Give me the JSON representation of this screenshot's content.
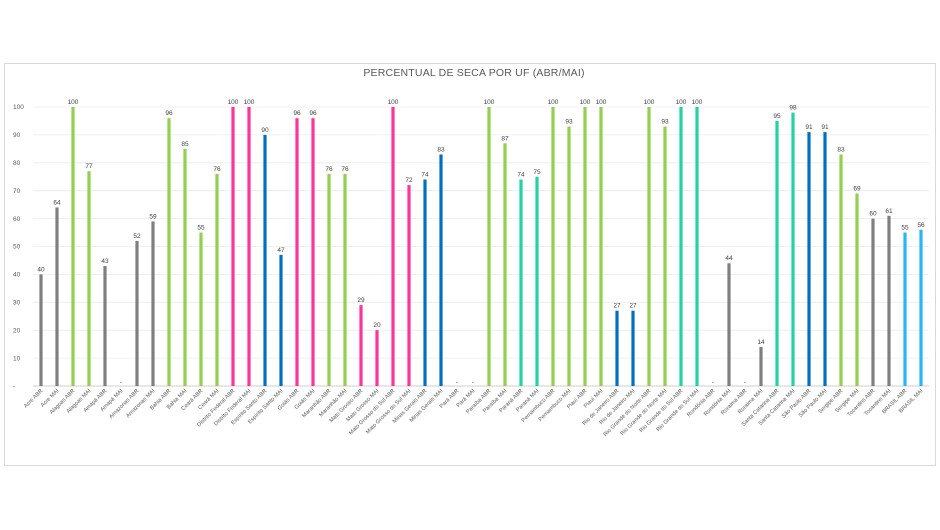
{
  "chart_data": {
    "type": "bar",
    "title": "PERCENTUAL DE SECA POR UF (ABR/MAI)",
    "xlabel": "",
    "ylabel": "",
    "ylim": [
      0,
      100
    ],
    "yticks": [
      "-",
      "10",
      "20",
      "30",
      "40",
      "50",
      "60",
      "70",
      "80",
      "90",
      "100"
    ],
    "grid": true,
    "legend": "none",
    "colors": {
      "gray": "#7f7f7f",
      "green": "#92d050",
      "pink": "#ff3399",
      "blue": "#0070c0",
      "teal": "#21d3a5",
      "lightblue": "#29b6f6"
    },
    "points": [
      {
        "category": "Acre ABR",
        "value": 40,
        "label": "40",
        "color": "gray"
      },
      {
        "category": "Acre MAI",
        "value": 64,
        "label": "64",
        "color": "gray"
      },
      {
        "category": "Alagoas ABR",
        "value": 100,
        "label": "100",
        "color": "green"
      },
      {
        "category": "Alagoas MAI",
        "value": 77,
        "label": "77",
        "color": "green"
      },
      {
        "category": "Amapá ABR",
        "value": 43,
        "label": "43",
        "color": "gray"
      },
      {
        "category": "Amapá MAI",
        "value": 0,
        "label": "-",
        "color": "gray"
      },
      {
        "category": "Amazonas ABR",
        "value": 52,
        "label": "52",
        "color": "gray"
      },
      {
        "category": "Amazonas MAI",
        "value": 59,
        "label": "59",
        "color": "gray"
      },
      {
        "category": "Bahia ABR",
        "value": 96,
        "label": "96",
        "color": "green"
      },
      {
        "category": "Bahia MAI",
        "value": 85,
        "label": "85",
        "color": "green"
      },
      {
        "category": "Ceará ABR",
        "value": 55,
        "label": "55",
        "color": "green"
      },
      {
        "category": "Ceará MAI",
        "value": 76,
        "label": "76",
        "color": "green"
      },
      {
        "category": "Distrito Federal ABR",
        "value": 100,
        "label": "100",
        "color": "pink"
      },
      {
        "category": "Distrito Federal MAI",
        "value": 100,
        "label": "100",
        "color": "pink"
      },
      {
        "category": "Espírito Santo ABR",
        "value": 90,
        "label": "90",
        "color": "blue"
      },
      {
        "category": "Espírito Santo MAI",
        "value": 47,
        "label": "47",
        "color": "blue"
      },
      {
        "category": "Goiás ABR",
        "value": 96,
        "label": "96",
        "color": "pink"
      },
      {
        "category": "Goiás MAI",
        "value": 96,
        "label": "96",
        "color": "pink"
      },
      {
        "category": "Maranhão ABR",
        "value": 76,
        "label": "76",
        "color": "green"
      },
      {
        "category": "Maranhão MAI",
        "value": 76,
        "label": "76",
        "color": "green"
      },
      {
        "category": "Mato Grosso ABR",
        "value": 29,
        "label": "29",
        "color": "pink"
      },
      {
        "category": "Mato Grosso MAI",
        "value": 20,
        "label": "20",
        "color": "pink"
      },
      {
        "category": "Mato Grosso do Sul ABR",
        "value": 100,
        "label": "100",
        "color": "pink"
      },
      {
        "category": "Mato Grosso do Sul MAI",
        "value": 72,
        "label": "72",
        "color": "pink"
      },
      {
        "category": "Minas Gerais ABR",
        "value": 74,
        "label": "74",
        "color": "blue"
      },
      {
        "category": "Minas Gerais MAI",
        "value": 83,
        "label": "83",
        "color": "blue"
      },
      {
        "category": "Pará ABR",
        "value": 0,
        "label": "-",
        "color": "gray"
      },
      {
        "category": "Pará MAI",
        "value": 0,
        "label": "-",
        "color": "gray"
      },
      {
        "category": "Paraíba ABR",
        "value": 100,
        "label": "100",
        "color": "green"
      },
      {
        "category": "Paraíba MAI",
        "value": 87,
        "label": "87",
        "color": "green"
      },
      {
        "category": "Paraná ABR",
        "value": 74,
        "label": "74",
        "color": "teal"
      },
      {
        "category": "Paraná MAI",
        "value": 75,
        "label": "75",
        "color": "teal"
      },
      {
        "category": "Pernambuco ABR",
        "value": 100,
        "label": "100",
        "color": "green"
      },
      {
        "category": "Pernambuco MAI",
        "value": 93,
        "label": "93",
        "color": "green"
      },
      {
        "category": "Piauí ABR",
        "value": 100,
        "label": "100",
        "color": "green"
      },
      {
        "category": "Piauí MAI",
        "value": 100,
        "label": "100",
        "color": "green"
      },
      {
        "category": "Rio de Janeiro ABR",
        "value": 27,
        "label": "27",
        "color": "blue"
      },
      {
        "category": "Rio de Janeiro MAI",
        "value": 27,
        "label": "27",
        "color": "blue"
      },
      {
        "category": "Rio Grande do Norte ABR",
        "value": 100,
        "label": "100",
        "color": "green"
      },
      {
        "category": "Rio Grande do Norte MAI",
        "value": 93,
        "label": "93",
        "color": "green"
      },
      {
        "category": "Rio Grande do Sul ABR",
        "value": 100,
        "label": "100",
        "color": "teal"
      },
      {
        "category": "Rio Grande do Sul MAI",
        "value": 100,
        "label": "100",
        "color": "teal"
      },
      {
        "category": "Rondônia ABR",
        "value": 0,
        "label": "-",
        "color": "gray"
      },
      {
        "category": "Rondônia MAI",
        "value": 44,
        "label": "44",
        "color": "gray"
      },
      {
        "category": "Roraima ABR",
        "value": 0,
        "label": "-",
        "color": "gray"
      },
      {
        "category": "Roraima MAI",
        "value": 14,
        "label": "14",
        "color": "gray"
      },
      {
        "category": "Santa Catarina ABR",
        "value": 95,
        "label": "95",
        "color": "teal"
      },
      {
        "category": "Santa Catarina MAI",
        "value": 98,
        "label": "98",
        "color": "teal"
      },
      {
        "category": "São Paulo ABR",
        "value": 91,
        "label": "91",
        "color": "blue"
      },
      {
        "category": "São Paulo MAI",
        "value": 91,
        "label": "91",
        "color": "blue"
      },
      {
        "category": "Sergipe ABR",
        "value": 83,
        "label": "83",
        "color": "green"
      },
      {
        "category": "Sergipe MAI",
        "value": 69,
        "label": "69",
        "color": "green"
      },
      {
        "category": "Tocantins ABR",
        "value": 60,
        "label": "60",
        "color": "gray"
      },
      {
        "category": "Tocantins MAI",
        "value": 61,
        "label": "61",
        "color": "gray"
      },
      {
        "category": "BRASIL ABR",
        "value": 55,
        "label": "55",
        "color": "lightblue"
      },
      {
        "category": "BRASIL MAI",
        "value": 56,
        "label": "56",
        "color": "lightblue"
      }
    ]
  }
}
